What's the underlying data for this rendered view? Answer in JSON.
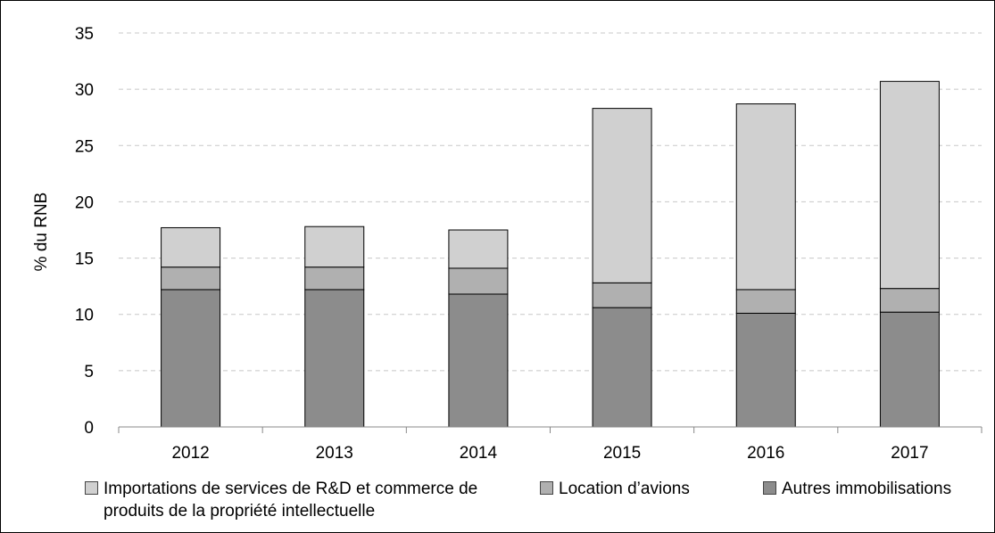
{
  "chart_data": {
    "type": "bar",
    "stacked": true,
    "categories": [
      "2012",
      "2013",
      "2014",
      "2015",
      "2016",
      "2017"
    ],
    "series": [
      {
        "name": "Autres immobilisations",
        "color": "#8c8c8c",
        "values": [
          12.2,
          12.2,
          11.8,
          10.6,
          10.1,
          10.2
        ]
      },
      {
        "name": "Location d’avions",
        "color": "#b0b0b0",
        "values": [
          2.0,
          2.0,
          2.3,
          2.2,
          2.1,
          2.1
        ]
      },
      {
        "name": "Importations de services de R&D et commerce de produits de la propriété intellectuelle",
        "color": "#d0d0d0",
        "values": [
          3.5,
          3.6,
          3.4,
          15.5,
          16.5,
          18.4
        ]
      }
    ],
    "ylabel": "% du RNB",
    "xlabel": "",
    "ylim": [
      0,
      35
    ],
    "yticks": [
      0,
      5,
      10,
      15,
      20,
      25,
      30,
      35
    ],
    "grid": true,
    "legend_position": "bottom"
  }
}
